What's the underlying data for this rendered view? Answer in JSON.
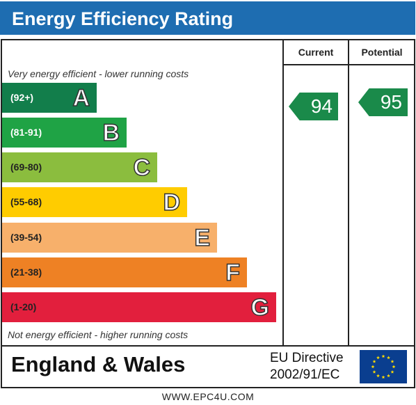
{
  "title": "Energy Efficiency Rating",
  "columns": {
    "current": "Current",
    "potential": "Potential"
  },
  "top_note": "Very energy efficient - lower running costs",
  "bottom_note": "Not energy efficient - higher running costs",
  "footer": {
    "country": "England & Wales",
    "directive_line1": "EU Directive",
    "directive_line2": "2002/91/EC"
  },
  "website": "WWW.EPC4U.COM",
  "colors": {
    "title_bar": "#1e6db1",
    "arrow": "#1a8a4a",
    "eu_flag": "#0a3e8f",
    "eu_stars": "#ffdd00"
  },
  "chart_data": {
    "type": "bar",
    "title": "Energy Efficiency Rating",
    "categories": [
      "A",
      "B",
      "C",
      "D",
      "E",
      "F",
      "G"
    ],
    "ranges": [
      "(92+)",
      "(81-91)",
      "(69-80)",
      "(55-68)",
      "(39-54)",
      "(21-38)",
      "(1-20)"
    ],
    "colors": [
      "#127e4b",
      "#1fa345",
      "#8bbd3e",
      "#ffcc00",
      "#f7b06b",
      "#ee8124",
      "#e21f3d"
    ],
    "range_text_colors": [
      "#ffffff",
      "#ffffff",
      "#222222",
      "#222222",
      "#222222",
      "#222222",
      "#222222"
    ],
    "ratings": {
      "current": 94,
      "potential": 95
    },
    "rating_band": {
      "current": "A",
      "potential": "A"
    }
  }
}
